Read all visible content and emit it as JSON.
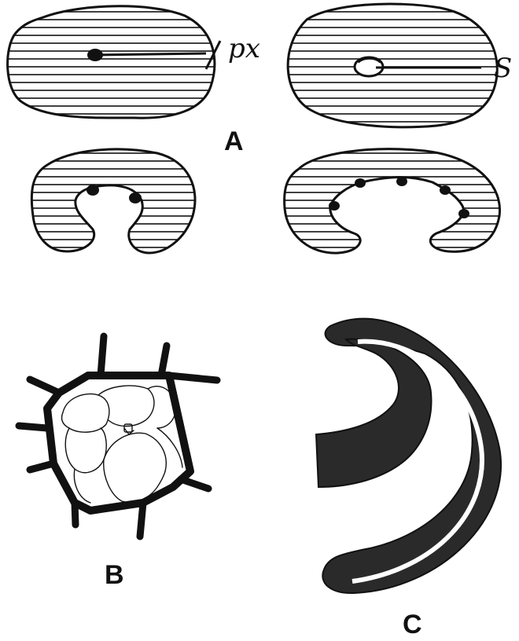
{
  "figure": {
    "panels": [
      {
        "id": "A",
        "label": "A"
      },
      {
        "id": "B",
        "label": "B"
      },
      {
        "id": "C",
        "label": "C"
      }
    ],
    "annotations": {
      "px": "px",
      "s": "S"
    }
  },
  "colors": {
    "ink": "#111111",
    "fill": "#ffffff",
    "dark_fill": "#2a2a2a"
  }
}
